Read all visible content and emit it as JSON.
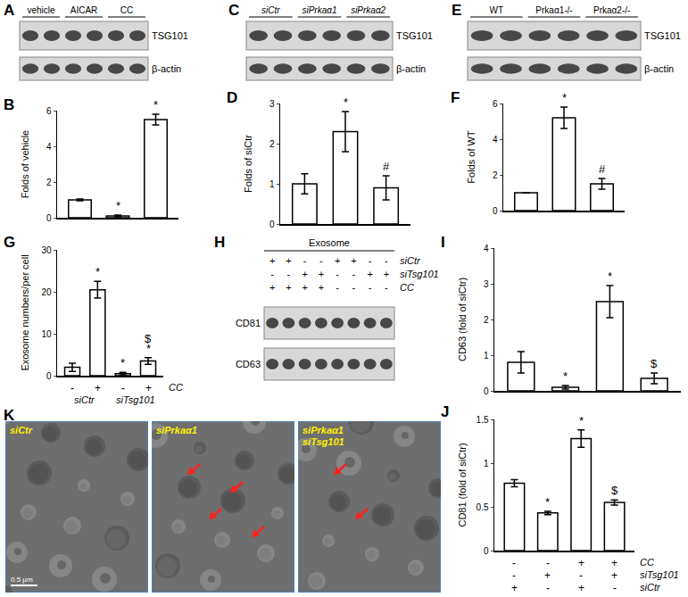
{
  "chart_data": [
    {
      "panel": "B",
      "type": "bar",
      "ylabel": "Folds of vehicle",
      "categories": [
        null,
        null,
        null
      ],
      "values": [
        1.0,
        0.1,
        5.5
      ],
      "errors": [
        0.05,
        0.05,
        0.3
      ],
      "color": "#ffffff",
      "ylim": [
        0,
        6
      ],
      "yticks": [
        0,
        2,
        4,
        6
      ],
      "annotations": [
        {
          "x": 1,
          "text": "*"
        },
        {
          "x": 2,
          "text": "*"
        }
      ]
    },
    {
      "panel": "D",
      "type": "bar",
      "ylabel": "Folds of siCtr",
      "categories": [
        null,
        null,
        null
      ],
      "values": [
        1.0,
        2.3,
        0.9
      ],
      "errors": [
        0.25,
        0.5,
        0.3
      ],
      "color": "#ffffff",
      "ylim": [
        0,
        3
      ],
      "yticks": [
        0,
        1,
        2,
        3
      ],
      "annotations": [
        {
          "x": 1,
          "text": "*"
        },
        {
          "x": 2,
          "text": "#"
        }
      ]
    },
    {
      "panel": "F",
      "type": "bar",
      "ylabel": "Folds of WT",
      "categories": [
        null,
        null,
        null
      ],
      "values": [
        1.0,
        5.2,
        1.5
      ],
      "errors": [
        0.0,
        0.6,
        0.3
      ],
      "color": "#ffffff",
      "ylim": [
        0,
        6
      ],
      "yticks": [
        0,
        2,
        4,
        6
      ],
      "annotations": [
        {
          "x": 1,
          "text": "*"
        },
        {
          "x": 2,
          "text": "#"
        }
      ]
    },
    {
      "panel": "G",
      "type": "bar",
      "ylabel": "Exosome numbers/per cell",
      "categories": [
        null,
        null,
        null,
        null
      ],
      "values": [
        2.0,
        20.5,
        0.5,
        3.5
      ],
      "errors": [
        1.0,
        2.0,
        0.3,
        0.8
      ],
      "color": "#ffffff",
      "ylim": [
        0,
        30
      ],
      "yticks": [
        0,
        10,
        20,
        30
      ],
      "annotations": [
        {
          "x": 1,
          "text": "*"
        },
        {
          "x": 2,
          "text": "*"
        },
        {
          "x": 3,
          "text": "*"
        },
        {
          "x": 3,
          "text": "$"
        }
      ],
      "rows": [
        {
          "label": "CC",
          "values": [
            "-",
            "+",
            "-",
            "+"
          ]
        }
      ],
      "groups": [
        {
          "label": "siCtr",
          "from": 0,
          "to": 1
        },
        {
          "label": "siTsg101",
          "from": 2,
          "to": 3
        }
      ]
    },
    {
      "panel": "I",
      "type": "bar",
      "ylabel": "CD63 (fold of siCtr)",
      "categories": [
        null,
        null,
        null,
        null
      ],
      "values": [
        0.8,
        0.1,
        2.5,
        0.35
      ],
      "errors": [
        0.3,
        0.05,
        0.45,
        0.15
      ],
      "color": "#ffffff",
      "ylim": [
        0,
        4
      ],
      "yticks": [
        0,
        1,
        2,
        3,
        4
      ],
      "annotations": [
        {
          "x": 1,
          "text": "*"
        },
        {
          "x": 2,
          "text": "*"
        },
        {
          "x": 3,
          "text": "$"
        }
      ]
    },
    {
      "panel": "J",
      "type": "bar",
      "ylabel": "CD81 (fold of siCtr)",
      "categories": [
        null,
        null,
        null,
        null
      ],
      "values": [
        0.77,
        0.43,
        1.28,
        0.55
      ],
      "errors": [
        0.04,
        0.02,
        0.1,
        0.03
      ],
      "color": "#ffffff",
      "ylim": [
        0,
        1.5
      ],
      "yticks": [
        0,
        0.5,
        1,
        1.5
      ],
      "annotations": [
        {
          "x": 1,
          "text": "*"
        },
        {
          "x": 2,
          "text": "*"
        },
        {
          "x": 3,
          "text": "$"
        }
      ],
      "rows": [
        {
          "label": "CC",
          "values": [
            "-",
            "-",
            "+",
            "+"
          ]
        },
        {
          "label": "siTsg101",
          "values": [
            "-",
            "+",
            "-",
            "+"
          ]
        },
        {
          "label": "siCtr",
          "values": [
            "+",
            "-",
            "+",
            "-"
          ]
        }
      ]
    }
  ],
  "blots": [
    {
      "panel": "A",
      "lanes": 6,
      "groups": [
        {
          "label": "vehicle",
          "from": 0,
          "to": 1
        },
        {
          "label": "AICAR",
          "from": 2,
          "to": 3
        },
        {
          "label": "CC",
          "from": 4,
          "to": 5
        }
      ],
      "bands": [
        "TSG101",
        "β-actin"
      ]
    },
    {
      "panel": "C",
      "lanes": 6,
      "groups": [
        {
          "label": "siCtr",
          "from": 0,
          "to": 1
        },
        {
          "label": "siPrkaα1",
          "from": 2,
          "to": 3
        },
        {
          "label": "siPrkaα2",
          "from": 4,
          "to": 5
        }
      ],
      "bands": [
        "TSG101",
        "β-actin"
      ]
    },
    {
      "panel": "E",
      "lanes": 6,
      "groups": [
        {
          "label": "WT",
          "from": 0,
          "to": 1
        },
        {
          "label": "Prkaα1-/-",
          "from": 2,
          "to": 3
        },
        {
          "label": "Prkaα2-/-",
          "from": 4,
          "to": 5
        }
      ],
      "bands": [
        "TSG101",
        "β-actin"
      ]
    },
    {
      "panel": "H",
      "lanes": 8,
      "title": "Exosome",
      "rows": [
        {
          "label": "siCtr",
          "values": [
            "+",
            "+",
            "-",
            "-",
            "+",
            "+",
            "-",
            "-"
          ]
        },
        {
          "label": "siTsg101",
          "values": [
            "-",
            "-",
            "+",
            "+",
            "-",
            "-",
            "+",
            "+"
          ]
        },
        {
          "label": "CC",
          "values": [
            "+",
            "+",
            "+",
            "+",
            "-",
            "-",
            "-",
            "-"
          ]
        }
      ],
      "bands": [
        "CD81",
        "CD63"
      ]
    }
  ],
  "micrographs": {
    "panel": "K",
    "scale_bar": "0.5 μm",
    "images": [
      {
        "lines": [
          "siCtr"
        ],
        "arrows": 0
      },
      {
        "lines": [
          "siPrkaα1"
        ],
        "arrows": 4
      },
      {
        "lines": [
          "siPrkaα1",
          "siTsg101"
        ],
        "arrows": 2
      }
    ]
  }
}
